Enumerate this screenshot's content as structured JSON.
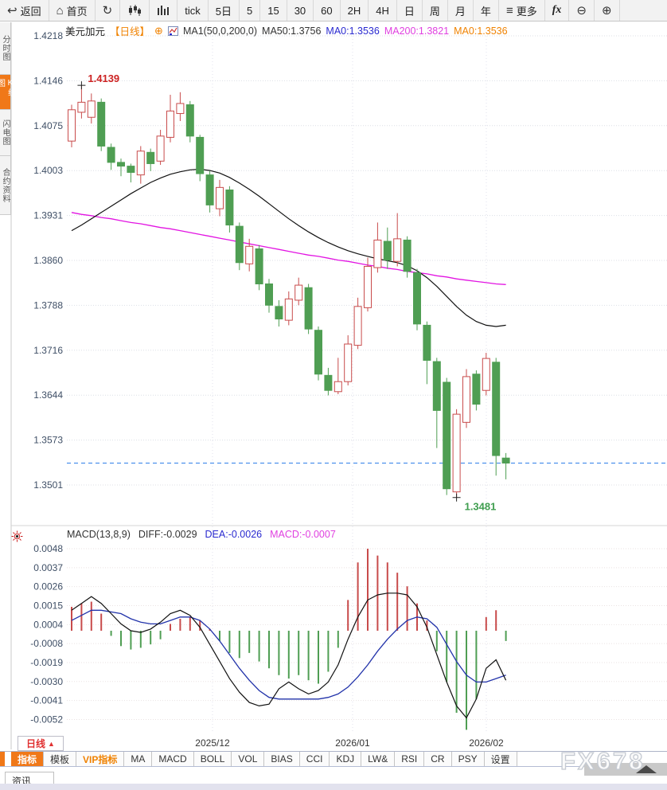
{
  "toolbar": {
    "items": [
      {
        "label": "返回",
        "glyph": "↩"
      },
      {
        "label": "首页",
        "glyph": "⌂"
      },
      {
        "label": "",
        "glyph": "↻"
      },
      {
        "label": "tick",
        "glyph": ""
      },
      {
        "label": "5日",
        "glyph": ""
      },
      {
        "label": "5",
        "glyph": ""
      },
      {
        "label": "15",
        "glyph": ""
      },
      {
        "label": "30",
        "glyph": ""
      },
      {
        "label": "60",
        "glyph": ""
      },
      {
        "label": "2H",
        "glyph": ""
      },
      {
        "label": "4H",
        "glyph": ""
      },
      {
        "label": "日",
        "glyph": ""
      },
      {
        "label": "周",
        "glyph": ""
      },
      {
        "label": "月",
        "glyph": ""
      },
      {
        "label": "年",
        "glyph": ""
      },
      {
        "label": "更多",
        "glyph": "≡"
      },
      {
        "label": "fx",
        "glyph": ""
      },
      {
        "label": "",
        "glyph": "⊖"
      },
      {
        "label": "",
        "glyph": "⊕"
      }
    ]
  },
  "sidebar": {
    "items": [
      {
        "label": "分时图",
        "selected": false
      },
      {
        "label": "K线图",
        "selected": true
      },
      {
        "label": "闪电图",
        "selected": false
      },
      {
        "label": "合约资料",
        "selected": false
      }
    ]
  },
  "chart_header": {
    "symbol": "美元加元",
    "period_tag": "【日线】",
    "plus": "⊕",
    "ma_param": "MA1(50,0,200,0)",
    "ma50": "MA50:1.3756",
    "ma0_blue": "MA0:1.3536",
    "ma200": "MA200:1.3821",
    "ma0_orange": "MA0:1.3536"
  },
  "macd_header": {
    "param": "MACD(13,8,9)",
    "diff": "DIFF:-0.0029",
    "dea": "DEA:-0.0026",
    "macd": "MACD:-0.0007"
  },
  "bottom": {
    "period_label": "日线",
    "period_arrow": "▲",
    "tabs": [
      "指标",
      "模板",
      "VIP指标",
      "MA",
      "MACD",
      "BOLL",
      "VOL",
      "BIAS",
      "CCI",
      "KDJ",
      "LW&",
      "RSI",
      "CR",
      "PSY",
      "设置"
    ],
    "news_tab": "资讯",
    "watermark": "FX678"
  },
  "chart_data": {
    "type": "candlestick+macd",
    "title": "美元加元 (USD/CAD) 日线",
    "price_axis": {
      "labels": [
        "1.4218",
        "1.4146",
        "1.4075",
        "1.4003",
        "1.3931",
        "1.3860",
        "1.3788",
        "1.3716",
        "1.3644",
        "1.3573",
        "1.3501"
      ],
      "max": 1.4218,
      "min": 1.3501
    },
    "x_axis": {
      "labels": [
        "2025/12",
        "2026/01",
        "2026/02"
      ],
      "positions": [
        267,
        443,
        611
      ]
    },
    "current_price": 1.3536,
    "annotations": {
      "high": {
        "text": "1.4139",
        "value": 1.4139,
        "index": 1
      },
      "low": {
        "text": "1.3481",
        "value": 1.3481,
        "index": 39
      }
    },
    "candles": [
      [
        1.405,
        1.4108,
        1.404,
        1.41
      ],
      [
        1.4096,
        1.4139,
        1.4086,
        1.4112
      ],
      [
        1.4088,
        1.4126,
        1.4078,
        1.4114
      ],
      [
        1.4112,
        1.4118,
        1.4034,
        1.4042
      ],
      [
        1.404,
        1.4046,
        1.4004,
        1.4016
      ],
      [
        1.4016,
        1.4022,
        1.3994,
        1.401
      ],
      [
        1.401,
        1.4014,
        1.3984,
        1.4
      ],
      [
        1.3996,
        1.4042,
        1.3982,
        1.4034
      ],
      [
        1.4032,
        1.4038,
        1.4002,
        1.4014
      ],
      [
        1.4018,
        1.4068,
        1.4012,
        1.4058
      ],
      [
        1.4056,
        1.4124,
        1.4048,
        1.4098
      ],
      [
        1.4094,
        1.4128,
        1.4082,
        1.411
      ],
      [
        1.4108,
        1.4114,
        1.4048,
        1.4058
      ],
      [
        1.4056,
        1.406,
        1.3986,
        1.3998
      ],
      [
        1.3996,
        1.4002,
        1.3936,
        1.3948
      ],
      [
        1.3942,
        1.3988,
        1.393,
        1.3976
      ],
      [
        1.3972,
        1.3978,
        1.3904,
        1.3916
      ],
      [
        1.3914,
        1.392,
        1.3844,
        1.3856
      ],
      [
        1.3854,
        1.3894,
        1.3842,
        1.3882
      ],
      [
        1.3878,
        1.3884,
        1.3812,
        1.3822
      ],
      [
        1.3822,
        1.383,
        1.3776,
        1.3788
      ],
      [
        1.3786,
        1.3796,
        1.3754,
        1.3766
      ],
      [
        1.3764,
        1.381,
        1.3756,
        1.3798
      ],
      [
        1.3796,
        1.3832,
        1.3788,
        1.382
      ],
      [
        1.3816,
        1.3822,
        1.3742,
        1.375
      ],
      [
        1.3748,
        1.3754,
        1.3668,
        1.3678
      ],
      [
        1.3676,
        1.3688,
        1.3644,
        1.3652
      ],
      [
        1.365,
        1.3704,
        1.3646,
        1.3666
      ],
      [
        1.3666,
        1.374,
        1.366,
        1.3726
      ],
      [
        1.3724,
        1.38,
        1.3718,
        1.3786
      ],
      [
        1.3784,
        1.3864,
        1.3778,
        1.385
      ],
      [
        1.3848,
        1.392,
        1.384,
        1.3892
      ],
      [
        1.389,
        1.3912,
        1.3846,
        1.386
      ],
      [
        1.3858,
        1.3935,
        1.385,
        1.3894
      ],
      [
        1.3892,
        1.3898,
        1.3832,
        1.3842
      ],
      [
        1.384,
        1.3846,
        1.3748,
        1.3758
      ],
      [
        1.3756,
        1.3762,
        1.3662,
        1.37
      ],
      [
        1.3698,
        1.3704,
        1.356,
        1.362
      ],
      [
        1.3665,
        1.3672,
        1.3485,
        1.3495
      ],
      [
        1.349,
        1.3622,
        1.3481,
        1.3614
      ],
      [
        1.3601,
        1.3686,
        1.3592,
        1.3674
      ],
      [
        1.3678,
        1.3684,
        1.362,
        1.363
      ],
      [
        1.3652,
        1.3712,
        1.3644,
        1.3703
      ],
      [
        1.3697,
        1.3704,
        1.3516,
        1.3548
      ],
      [
        1.3544,
        1.3552,
        1.351,
        1.3536
      ]
    ],
    "ma50": [
      1.3907,
      1.3916,
      1.3926,
      1.3936,
      1.3946,
      1.3956,
      1.3966,
      1.3975,
      1.3984,
      1.3991,
      1.3997,
      1.4001,
      1.4004,
      1.4005,
      1.4003,
      1.3999,
      1.3992,
      1.3983,
      1.3973,
      1.3962,
      1.395,
      1.3938,
      1.3926,
      1.3915,
      1.3905,
      1.3896,
      1.3888,
      1.3881,
      1.3875,
      1.387,
      1.3866,
      1.3862,
      1.3859,
      1.3856,
      1.3851,
      1.3843,
      1.3832,
      1.3818,
      1.3802,
      1.3786,
      1.3772,
      1.3762,
      1.3756,
      1.3754,
      1.3756
    ],
    "ma200": [
      1.3936,
      1.3933,
      1.3931,
      1.3928,
      1.3926,
      1.3923,
      1.392,
      1.3918,
      1.3915,
      1.3912,
      1.391,
      1.3907,
      1.3904,
      1.3901,
      1.3898,
      1.3895,
      1.3892,
      1.3889,
      1.3886,
      1.3883,
      1.388,
      1.3877,
      1.3874,
      1.3871,
      1.3868,
      1.3866,
      1.3863,
      1.386,
      1.3858,
      1.3855,
      1.3852,
      1.385,
      1.3847,
      1.3845,
      1.3842,
      1.384,
      1.3838,
      1.3835,
      1.3833,
      1.383,
      1.3828,
      1.3826,
      1.3824,
      1.3822,
      1.3821
    ],
    "macd": {
      "axis_labels": [
        "0.0048",
        "0.0037",
        "0.0026",
        "0.0015",
        "0.0004",
        "-0.0008",
        "-0.0019",
        "-0.0030",
        "-0.0041",
        "-0.0052"
      ],
      "hist": [
        0.0014,
        0.0016,
        0.0017,
        0.001,
        -0.0003,
        -0.0009,
        -0.0011,
        -0.001,
        -0.0008,
        -0.0005,
        0.0004,
        0.0007,
        0.0008,
        0.0006,
        0.0001,
        -0.0006,
        -0.0013,
        -0.0016,
        -0.0013,
        -0.0018,
        -0.0022,
        -0.0026,
        -0.0028,
        -0.0026,
        -0.0029,
        -0.0031,
        -0.0024,
        -0.001,
        0.0018,
        0.004,
        0.0048,
        0.0044,
        0.004,
        0.0034,
        0.0026,
        0.0016,
        0.0006,
        -0.0012,
        -0.003,
        -0.0048,
        -0.0058,
        -0.004,
        0.0008,
        0.0012,
        -0.0006
      ],
      "diff": [
        0.0012,
        0.0016,
        0.002,
        0.0016,
        0.001,
        0.0004,
        0.0,
        -0.0001,
        0.0001,
        0.0005,
        0.001,
        0.0012,
        0.0009,
        0.0002,
        -0.0008,
        -0.0018,
        -0.0028,
        -0.0036,
        -0.0042,
        -0.0044,
        -0.0043,
        -0.0034,
        -0.003,
        -0.0034,
        -0.0037,
        -0.0035,
        -0.003,
        -0.002,
        -0.0005,
        0.0008,
        0.0018,
        0.0021,
        0.0022,
        0.0022,
        0.0021,
        0.0014,
        0.0002,
        -0.0014,
        -0.003,
        -0.0044,
        -0.0051,
        -0.004,
        -0.0022,
        -0.0017,
        -0.0029
      ],
      "dea": [
        0.0006,
        0.0009,
        0.0012,
        0.0012,
        0.0011,
        0.001,
        0.0007,
        0.0005,
        0.0004,
        0.0004,
        0.0006,
        0.0008,
        0.0008,
        0.0006,
        0.0001,
        -0.0006,
        -0.0014,
        -0.0022,
        -0.0029,
        -0.0035,
        -0.0039,
        -0.004,
        -0.004,
        -0.004,
        -0.004,
        -0.004,
        -0.0039,
        -0.0037,
        -0.0033,
        -0.0027,
        -0.002,
        -0.0012,
        -0.0005,
        0.0001,
        0.0006,
        0.0008,
        0.0007,
        0.0002,
        -0.0008,
        -0.0018,
        -0.0026,
        -0.003,
        -0.003,
        -0.0028,
        -0.0026
      ]
    },
    "colors": {
      "up": "#c84b4b",
      "down": "#4f9e53",
      "ma50": "#111111",
      "ma200": "#e214e2",
      "dea": "#2233aa",
      "diff": "#111111",
      "current_line": "#2f7fe8",
      "high_label": "#cc2222",
      "low_label": "#3f9e4f",
      "axis_text": "#3f4f66"
    }
  }
}
